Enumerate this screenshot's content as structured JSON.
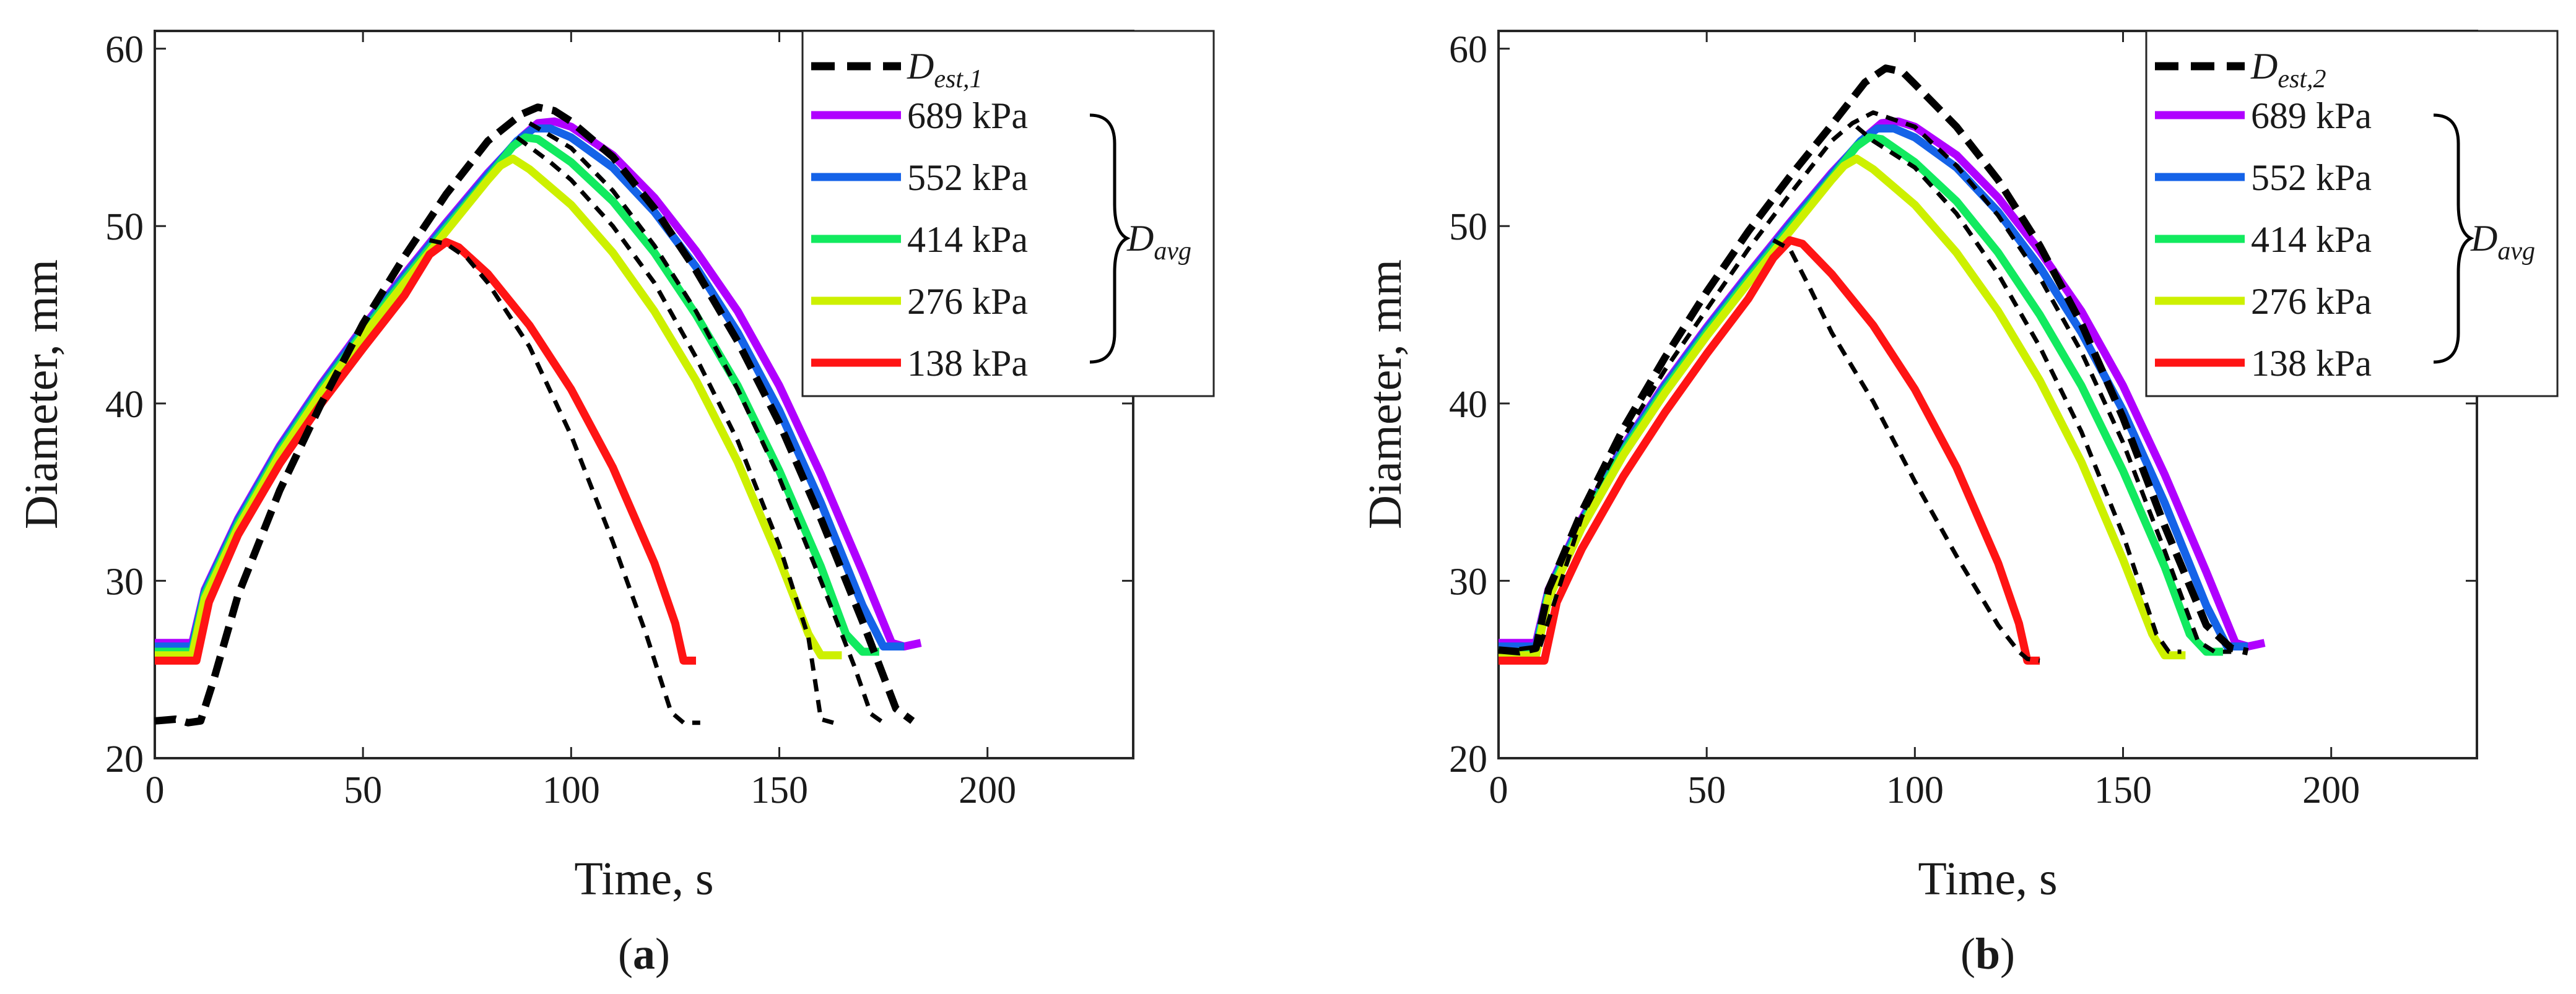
{
  "charts": [
    {
      "caption": {
        "open": "(",
        "letter": "a",
        "close": ")"
      },
      "estimate_legend": {
        "base": "D",
        "sub": "est,1"
      },
      "avg_label": {
        "base": "D",
        "sub": "avg"
      }
    },
    {
      "caption": {
        "open": "(",
        "letter": "b",
        "close": ")"
      },
      "estimate_legend": {
        "base": "D",
        "sub": "est,2"
      },
      "avg_label": {
        "base": "D",
        "sub": "avg"
      }
    }
  ],
  "chart_data": [
    {
      "type": "line",
      "xlabel": "Time, s",
      "ylabel": "Diameter, mm",
      "xlim": [
        0,
        235
      ],
      "ylim": [
        20,
        61
      ],
      "xticks": [
        0,
        50,
        100,
        150,
        200
      ],
      "yticks": [
        20,
        30,
        40,
        50,
        60
      ],
      "grid": false,
      "legend_position": "top-right",
      "series": [
        {
          "name": "689 kPa",
          "color": "#b000ff",
          "dashed": false,
          "x": [
            0,
            9,
            12,
            20,
            30,
            40,
            50,
            60,
            70,
            80,
            88,
            92,
            96,
            100,
            110,
            120,
            130,
            140,
            150,
            160,
            170,
            177,
            180,
            184
          ],
          "y": [
            26.5,
            26.5,
            29.5,
            33.5,
            37.6,
            41.1,
            44.3,
            47.3,
            50.2,
            53.0,
            55.0,
            55.8,
            55.9,
            55.6,
            54.0,
            51.6,
            48.6,
            45.2,
            41.0,
            36.0,
            30.5,
            26.5,
            26.3,
            26.5
          ]
        },
        {
          "name": "552 kPa",
          "color": "#1563e8",
          "dashed": false,
          "x": [
            0,
            9,
            12,
            20,
            30,
            40,
            50,
            60,
            70,
            80,
            87,
            91,
            95,
            100,
            110,
            120,
            130,
            140,
            150,
            160,
            170,
            175,
            180
          ],
          "y": [
            26.3,
            26.3,
            29.4,
            33.4,
            37.5,
            41.0,
            44.2,
            47.2,
            50.1,
            52.9,
            54.8,
            55.5,
            55.5,
            55.0,
            53.3,
            50.8,
            47.7,
            44.0,
            39.6,
            34.4,
            28.6,
            26.3,
            26.3
          ]
        },
        {
          "name": "414 kPa",
          "color": "#12ea5f",
          "dashed": false,
          "x": [
            0,
            9,
            12,
            20,
            30,
            40,
            50,
            60,
            70,
            80,
            86,
            89,
            92,
            100,
            110,
            120,
            130,
            140,
            150,
            160,
            166,
            170,
            174
          ],
          "y": [
            26.0,
            26.0,
            29.2,
            33.2,
            37.3,
            40.8,
            44.0,
            47.0,
            49.9,
            52.7,
            54.5,
            55.0,
            54.9,
            53.6,
            51.4,
            48.5,
            45.0,
            41.0,
            36.2,
            30.8,
            27.0,
            26.0,
            26.0
          ]
        },
        {
          "name": "276 kPa",
          "color": "#cdf000",
          "dashed": false,
          "x": [
            0,
            9,
            12,
            20,
            30,
            40,
            50,
            60,
            70,
            80,
            83,
            86,
            90,
            100,
            110,
            120,
            130,
            140,
            150,
            157,
            160,
            165
          ],
          "y": [
            25.8,
            25.8,
            29.0,
            33.0,
            37.1,
            40.6,
            43.8,
            46.8,
            49.7,
            52.6,
            53.4,
            53.8,
            53.2,
            51.2,
            48.5,
            45.2,
            41.3,
            36.7,
            31.2,
            27.0,
            25.8,
            25.8
          ]
        },
        {
          "name": "138 kPa",
          "color": "#ff1414",
          "dashed": false,
          "x": [
            0,
            10,
            13,
            20,
            30,
            40,
            50,
            60,
            66,
            70,
            73,
            80,
            90,
            100,
            110,
            120,
            125,
            127,
            130
          ],
          "y": [
            25.5,
            25.5,
            28.8,
            32.6,
            36.6,
            40.0,
            43.1,
            46.1,
            48.4,
            49.1,
            48.8,
            47.3,
            44.4,
            40.8,
            36.4,
            31.0,
            27.6,
            25.5,
            25.5
          ]
        },
        {
          "name": "",
          "color": "#000000",
          "dashed": true,
          "bold": true,
          "x": [
            0,
            5,
            8,
            11,
            14,
            20,
            30,
            40,
            50,
            60,
            70,
            80,
            88,
            92,
            96,
            100,
            110,
            120,
            130,
            140,
            150,
            160,
            170,
            178,
            182
          ],
          "y": [
            22.1,
            22.2,
            22.0,
            22.1,
            24.3,
            29.2,
            35.1,
            40.0,
            44.5,
            48.3,
            51.8,
            54.8,
            56.3,
            56.7,
            56.5,
            55.9,
            53.9,
            51.0,
            47.5,
            43.5,
            38.9,
            33.5,
            27.7,
            22.8,
            22.1
          ]
        },
        {
          "name": "",
          "color": "#000000",
          "dashed": true,
          "x": [
            90,
            100,
            110,
            120,
            130,
            140,
            150,
            160,
            168,
            172,
            175
          ],
          "y": [
            55.8,
            54.4,
            52.0,
            48.9,
            45.2,
            40.8,
            35.8,
            30.0,
            25.2,
            22.5,
            22.0
          ]
        },
        {
          "name": "",
          "color": "#000000",
          "dashed": true,
          "x": [
            87,
            95,
            100,
            110,
            120,
            130,
            140,
            150,
            157,
            160,
            163
          ],
          "y": [
            55.0,
            53.6,
            52.6,
            50.0,
            46.8,
            42.6,
            37.9,
            32.0,
            26.8,
            22.2,
            22.0
          ]
        },
        {
          "name": "",
          "color": "#000000",
          "dashed": true,
          "x": [
            66,
            70,
            75,
            80,
            90,
            100,
            110,
            118,
            124,
            127,
            131
          ],
          "y": [
            49.2,
            49.0,
            48.2,
            46.8,
            43.2,
            38.2,
            32.2,
            27.0,
            22.6,
            22.0,
            22.0
          ]
        }
      ]
    },
    {
      "type": "line",
      "xlabel": "Time, s",
      "ylabel": "Diameter, mm",
      "xlim": [
        0,
        235
      ],
      "ylim": [
        20,
        61
      ],
      "xticks": [
        0,
        50,
        100,
        150,
        200
      ],
      "yticks": [
        20,
        30,
        40,
        50,
        60
      ],
      "grid": false,
      "legend_position": "top-right",
      "series": [
        {
          "name": "689 kPa",
          "color": "#b000ff",
          "dashed": false,
          "x": [
            0,
            9,
            12,
            20,
            30,
            40,
            50,
            60,
            70,
            80,
            88,
            92,
            96,
            100,
            110,
            120,
            130,
            140,
            150,
            160,
            170,
            177,
            180,
            184
          ],
          "y": [
            26.5,
            26.5,
            29.5,
            33.5,
            37.6,
            41.1,
            44.3,
            47.3,
            50.2,
            53.0,
            55.0,
            55.8,
            55.9,
            55.6,
            54.0,
            51.6,
            48.6,
            45.2,
            41.0,
            36.0,
            30.5,
            26.5,
            26.3,
            26.5
          ]
        },
        {
          "name": "552 kPa",
          "color": "#1563e8",
          "dashed": false,
          "x": [
            0,
            9,
            12,
            20,
            30,
            40,
            50,
            60,
            70,
            80,
            87,
            91,
            95,
            100,
            110,
            120,
            130,
            140,
            150,
            160,
            170,
            175,
            180
          ],
          "y": [
            26.3,
            26.3,
            29.4,
            33.4,
            37.5,
            41.0,
            44.2,
            47.2,
            50.1,
            52.9,
            54.8,
            55.5,
            55.5,
            55.0,
            53.3,
            50.8,
            47.7,
            44.0,
            39.6,
            34.4,
            28.6,
            26.3,
            26.3
          ]
        },
        {
          "name": "414 kPa",
          "color": "#12ea5f",
          "dashed": false,
          "x": [
            0,
            9,
            12,
            20,
            30,
            40,
            50,
            60,
            70,
            80,
            86,
            89,
            92,
            100,
            110,
            120,
            130,
            140,
            150,
            160,
            166,
            170,
            174
          ],
          "y": [
            26.0,
            26.0,
            29.2,
            33.2,
            37.3,
            40.8,
            44.0,
            47.0,
            49.9,
            52.7,
            54.5,
            55.0,
            54.9,
            53.6,
            51.4,
            48.5,
            45.0,
            41.0,
            36.2,
            30.8,
            27.0,
            26.0,
            26.0
          ]
        },
        {
          "name": "276 kPa",
          "color": "#cdf000",
          "dashed": false,
          "x": [
            0,
            9,
            12,
            20,
            30,
            40,
            50,
            60,
            70,
            80,
            83,
            86,
            90,
            100,
            110,
            120,
            130,
            140,
            150,
            157,
            160,
            165
          ],
          "y": [
            25.8,
            25.8,
            29.0,
            33.0,
            37.1,
            40.6,
            43.8,
            46.8,
            49.7,
            52.6,
            53.4,
            53.8,
            53.2,
            51.2,
            48.5,
            45.2,
            41.3,
            36.7,
            31.2,
            27.0,
            25.8,
            25.8
          ]
        },
        {
          "name": "138 kPa",
          "color": "#ff1414",
          "dashed": false,
          "x": [
            0,
            11,
            14,
            20,
            30,
            40,
            50,
            60,
            66,
            70,
            73,
            80,
            90,
            100,
            110,
            120,
            125,
            127,
            130
          ],
          "y": [
            25.5,
            25.5,
            28.8,
            31.8,
            35.9,
            39.5,
            42.8,
            45.9,
            48.2,
            49.2,
            49.0,
            47.3,
            44.4,
            40.8,
            36.4,
            31.0,
            27.6,
            25.5,
            25.5
          ]
        },
        {
          "name": "",
          "color": "#000000",
          "dashed": true,
          "bold": true,
          "x": [
            0,
            5,
            9,
            12,
            20,
            30,
            40,
            50,
            60,
            70,
            80,
            88,
            93,
            97,
            100,
            110,
            120,
            130,
            140,
            150,
            160,
            170,
            176,
            180
          ],
          "y": [
            26.1,
            26.0,
            26.2,
            29.5,
            33.9,
            38.6,
            42.6,
            46.3,
            49.7,
            52.8,
            55.7,
            58.1,
            58.9,
            58.7,
            58.0,
            55.6,
            52.6,
            48.9,
            44.5,
            39.2,
            33.1,
            27.5,
            26.2,
            26.0
          ]
        },
        {
          "name": "",
          "color": "#000000",
          "dashed": true,
          "x": [
            0,
            10,
            20,
            30,
            40,
            50,
            60,
            70,
            80,
            85,
            90,
            100,
            110,
            120,
            130,
            140,
            150,
            160,
            168,
            172,
            176
          ],
          "y": [
            26.0,
            26.3,
            33.6,
            38.1,
            41.9,
            45.3,
            48.7,
            51.8,
            54.8,
            55.8,
            56.4,
            55.6,
            53.4,
            50.6,
            47.1,
            42.9,
            37.8,
            31.7,
            26.6,
            26.0,
            26.0
          ]
        },
        {
          "name": "",
          "color": "#000000",
          "dashed": true,
          "x": [
            86,
            90,
            100,
            110,
            120,
            130,
            140,
            150,
            158,
            161,
            164
          ],
          "y": [
            55.6,
            54.8,
            53.3,
            50.7,
            47.3,
            43.2,
            38.4,
            32.6,
            27.0,
            26.0,
            26.0
          ]
        },
        {
          "name": "",
          "color": "#000000",
          "dashed": true,
          "x": [
            66,
            70,
            75,
            80,
            90,
            100,
            110,
            120,
            125,
            127,
            130
          ],
          "y": [
            49.2,
            48.7,
            46.4,
            44.0,
            40.1,
            35.6,
            31.4,
            27.5,
            26.0,
            25.6,
            25.5
          ]
        }
      ]
    }
  ]
}
